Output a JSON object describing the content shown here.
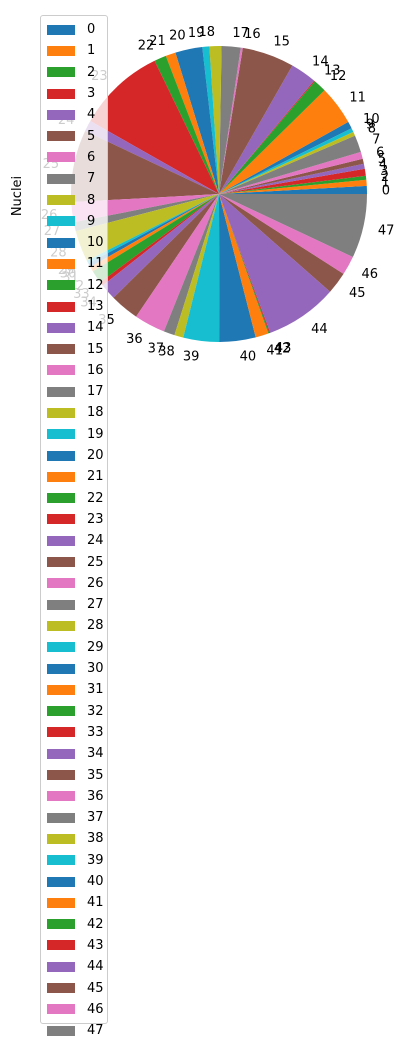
{
  "chart_data": {
    "type": "pie",
    "ylabel": "Nuclei",
    "labels": [
      "0",
      "1",
      "2",
      "3",
      "4",
      "5",
      "6",
      "7",
      "8",
      "9",
      "10",
      "11",
      "12",
      "13",
      "14",
      "15",
      "16",
      "17",
      "18",
      "19",
      "20",
      "21",
      "22",
      "23",
      "24",
      "25",
      "26",
      "27",
      "28",
      "29",
      "30",
      "31",
      "32",
      "33",
      "34",
      "35",
      "36",
      "37",
      "38",
      "39",
      "40",
      "41",
      "42",
      "43",
      "44",
      "45",
      "46",
      "47"
    ],
    "values": [
      0.8,
      0.6,
      0.4,
      0.7,
      0.5,
      0.5,
      0.7,
      1.7,
      0.4,
      0.4,
      0.7,
      3.9,
      1.3,
      0.1,
      2.6,
      5.2,
      0.2,
      1.9,
      1.2,
      0.7,
      2.7,
      1.0,
      1.2,
      8.8,
      1.1,
      7.2,
      2.0,
      0.9,
      3.1,
      0.3,
      0.4,
      0.5,
      1.3,
      0.4,
      1.6,
      2.9,
      3.1,
      1.1,
      0.9,
      3.6,
      3.6,
      1.3,
      0.1,
      0.1,
      7.2,
      2.2,
      1.9,
      6.4
    ],
    "legend_position": "upper-left",
    "start_angle": 0,
    "direction": "counterclockwise"
  },
  "colors": [
    "#1f77b4",
    "#ff7f0e",
    "#2ca02c",
    "#d62728",
    "#9467bd",
    "#8c564b",
    "#e377c2",
    "#7f7f7f",
    "#bcbd22",
    "#17becf"
  ]
}
